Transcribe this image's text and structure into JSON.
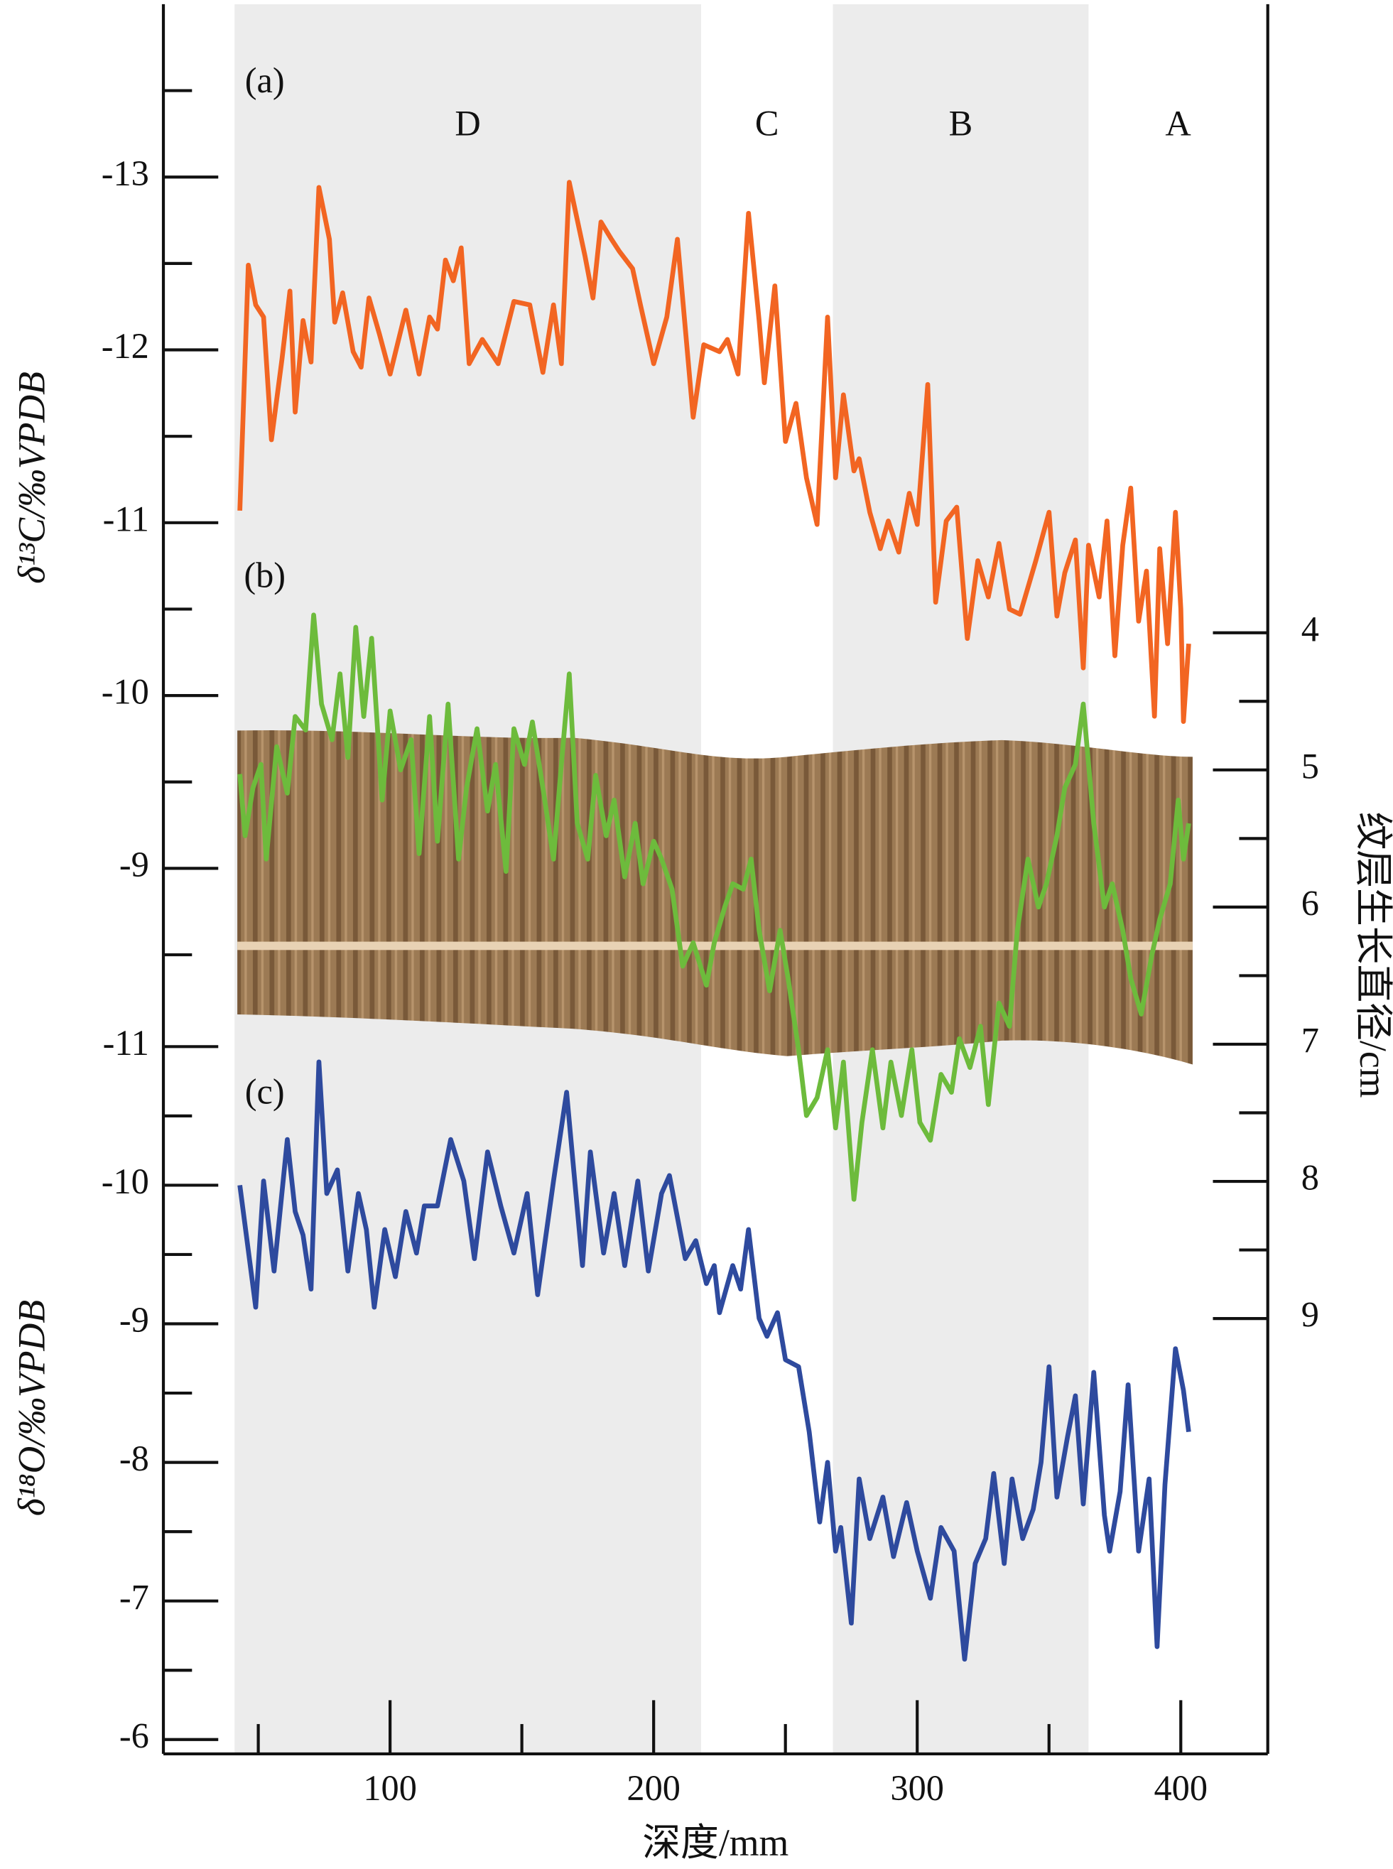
{
  "chart_data": {
    "type": "line",
    "x_label": "深度/mm",
    "xlim": [
      14,
      433
    ],
    "xticks": [
      100,
      200,
      300,
      400
    ],
    "xminor": [
      50,
      150,
      250,
      350
    ],
    "ylabel": "δ¹³C/‰VPDB",
    "ylim": [
      -14,
      -8.5
    ],
    "yticks": [
      -13,
      -12,
      -11,
      -10,
      -9
    ],
    "yminor": [
      -13.5,
      -12.5,
      -11.5,
      -10.5,
      -9.5,
      -8.5
    ],
    "y3label": "δ¹⁸O/‰VPDB",
    "y3lim": [
      -11,
      -6
    ],
    "y3ticks": [
      -11,
      -10,
      -9,
      -8,
      -7,
      -6
    ],
    "y3minor": [
      -10.5,
      -9.5,
      -8.5,
      -7.5,
      -6.5
    ],
    "y2label": "纹层生长直径/cm",
    "y2lim": [
      4,
      9
    ],
    "y2ticks": [
      4,
      5,
      6,
      7,
      8,
      9
    ],
    "y2minor": [
      4.5,
      5.5,
      6.5,
      7.5,
      8.5
    ],
    "zones": [
      {
        "label": "D",
        "range": [
          41,
          218
        ],
        "shaded": true
      },
      {
        "label": "C",
        "range": [
          218,
          268
        ],
        "shaded": false
      },
      {
        "label": "B",
        "range": [
          268,
          365
        ],
        "shaded": true
      },
      {
        "label": "A",
        "range": [
          365,
          433
        ],
        "shaded": false
      }
    ],
    "series": [
      {
        "label": "(a)",
        "axis": "y",
        "color": "#f26522",
        "x": [
          43,
          46.2,
          49,
          52,
          55,
          59,
          62,
          64,
          67,
          70,
          73,
          77,
          79,
          82,
          86,
          89,
          92,
          96,
          100,
          106,
          111,
          115,
          118,
          121,
          124,
          127,
          130,
          135,
          141,
          147,
          153,
          158,
          162,
          165,
          168,
          174,
          177,
          180,
          184,
          187,
          192,
          195,
          200,
          205,
          209,
          215,
          219,
          225,
          228,
          232,
          236,
          240,
          242,
          246,
          250,
          254,
          258,
          262,
          266,
          269,
          272,
          276,
          278,
          282,
          286,
          289,
          293,
          297,
          300,
          304,
          307,
          311,
          315,
          319,
          323,
          327,
          331,
          335,
          339,
          345,
          350,
          353,
          356,
          360,
          363,
          365,
          369,
          372,
          375,
          378,
          381,
          384,
          387,
          390,
          392,
          395,
          398,
          400,
          401,
          403
        ],
        "values": [
          -11.07,
          -12.49,
          -12.26,
          -12.19,
          -11.48,
          -11.95,
          -12.34,
          -11.64,
          -12.17,
          -11.93,
          -12.94,
          -12.64,
          -12.16,
          -12.33,
          -11.99,
          -11.9,
          -12.3,
          -12.09,
          -11.86,
          -12.23,
          -11.86,
          -12.19,
          -12.12,
          -12.52,
          -12.4,
          -12.59,
          -11.92,
          -12.06,
          -11.92,
          -12.28,
          -12.26,
          -11.87,
          -12.26,
          -11.92,
          -12.97,
          -12.54,
          -12.3,
          -12.74,
          -12.64,
          -12.57,
          -12.47,
          -12.26,
          -11.92,
          -12.19,
          -12.64,
          -11.61,
          -12.03,
          -11.99,
          -12.06,
          -11.86,
          -12.79,
          -12.17,
          -11.81,
          -12.37,
          -11.47,
          -11.69,
          -11.26,
          -10.99,
          -12.19,
          -11.26,
          -11.74,
          -11.3,
          -11.37,
          -11.06,
          -10.85,
          -11.01,
          -10.83,
          -11.17,
          -10.99,
          -11.8,
          -10.54,
          -11.01,
          -11.09,
          -10.33,
          -10.78,
          -10.57,
          -10.88,
          -10.5,
          -10.47,
          -10.78,
          -11.06,
          -10.46,
          -10.71,
          -10.9,
          -10.16,
          -10.87,
          -10.57,
          -11.01,
          -10.23,
          -10.87,
          -11.2,
          -10.43,
          -10.72,
          -9.88,
          -10.85,
          -10.3,
          -11.06,
          -10.5,
          -9.85,
          -10.3
        ]
      },
      {
        "label": "(b)",
        "axis": "y2",
        "color": "#6dbb3c",
        "x": [
          43,
          45,
          48,
          51,
          53,
          57,
          61,
          64,
          68,
          71,
          74,
          78,
          81,
          84,
          87,
          90,
          93,
          97,
          100,
          104,
          108,
          111,
          115,
          118,
          122,
          126,
          129,
          133,
          137,
          140,
          144,
          147,
          151,
          154,
          158,
          162,
          165,
          168,
          171,
          175,
          178,
          182,
          185,
          189,
          193,
          196,
          200,
          203,
          207,
          211,
          215,
          220,
          223,
          227,
          230,
          234,
          237,
          240,
          244,
          248,
          251,
          255,
          258,
          262,
          266,
          269,
          272,
          276,
          279,
          283,
          287,
          290,
          294,
          298,
          301,
          305,
          309,
          313,
          316,
          320,
          324,
          327,
          331,
          335,
          338,
          342,
          346,
          349,
          353,
          356,
          360,
          363,
          367,
          371,
          374,
          378,
          381,
          385,
          389,
          392,
          396,
          399,
          401,
          403
        ],
        "values": [
          5.03,
          5.48,
          5.13,
          4.96,
          5.65,
          4.83,
          5.17,
          4.61,
          4.71,
          3.87,
          4.52,
          4.78,
          4.3,
          4.91,
          3.96,
          4.61,
          4.04,
          5.22,
          4.57,
          5.0,
          4.78,
          5.61,
          4.61,
          5.52,
          4.52,
          5.65,
          5.13,
          4.7,
          5.3,
          4.96,
          5.74,
          4.7,
          4.96,
          4.65,
          5.13,
          5.65,
          4.96,
          4.3,
          5.39,
          5.65,
          5.04,
          5.48,
          5.22,
          5.78,
          5.39,
          5.83,
          5.52,
          5.65,
          5.87,
          6.43,
          6.26,
          6.57,
          6.26,
          6.0,
          5.83,
          5.87,
          5.65,
          6.17,
          6.61,
          6.17,
          6.52,
          7.04,
          7.52,
          7.39,
          7.04,
          7.61,
          7.13,
          8.13,
          7.57,
          7.04,
          7.61,
          7.13,
          7.52,
          7.04,
          7.57,
          7.7,
          7.22,
          7.35,
          6.96,
          7.17,
          6.87,
          7.44,
          6.7,
          6.87,
          6.17,
          5.65,
          6.0,
          5.83,
          5.48,
          5.13,
          4.96,
          4.52,
          5.39,
          6.0,
          5.83,
          6.17,
          6.52,
          6.78,
          6.35,
          6.09,
          5.83,
          5.22,
          5.65,
          5.39
        ]
      },
      {
        "label": "(c)",
        "axis": "y3",
        "color": "#2e4a9e",
        "x": [
          43,
          49,
          52,
          56,
          61,
          64,
          67,
          70,
          73,
          76,
          80,
          84,
          88,
          91,
          94,
          98,
          102,
          106,
          110,
          113,
          118,
          123,
          128,
          132,
          137,
          142,
          147,
          152,
          156,
          162,
          167,
          173,
          176,
          181,
          185,
          189,
          194,
          198,
          203,
          206,
          212,
          216,
          220,
          223,
          225,
          230,
          233,
          236,
          240,
          243,
          247,
          250,
          255,
          259,
          263,
          266,
          269,
          271,
          275,
          278,
          282,
          287,
          291,
          296,
          300,
          305,
          309,
          314,
          318,
          322,
          326,
          329,
          333,
          336,
          340,
          344,
          347,
          350,
          353,
          357,
          360,
          363,
          367,
          371,
          373,
          377,
          380,
          384,
          388,
          391,
          394,
          398,
          401,
          403
        ],
        "values": [
          -10.0,
          -9.12,
          -10.03,
          -9.38,
          -10.33,
          -9.81,
          -9.64,
          -9.25,
          -10.89,
          -9.94,
          -10.11,
          -9.38,
          -9.94,
          -9.68,
          -9.12,
          -9.68,
          -9.34,
          -9.81,
          -9.51,
          -9.85,
          -9.85,
          -10.33,
          -10.03,
          -9.47,
          -10.24,
          -9.85,
          -9.51,
          -9.94,
          -9.21,
          -10.03,
          -10.67,
          -9.42,
          -10.24,
          -9.51,
          -9.94,
          -9.42,
          -10.03,
          -9.38,
          -9.94,
          -10.07,
          -9.47,
          -9.6,
          -9.29,
          -9.42,
          -9.08,
          -9.42,
          -9.25,
          -9.68,
          -9.04,
          -8.91,
          -9.08,
          -8.74,
          -8.69,
          -8.22,
          -7.57,
          -8.0,
          -7.36,
          -7.53,
          -6.84,
          -7.88,
          -7.45,
          -7.75,
          -7.32,
          -7.71,
          -7.36,
          -7.02,
          -7.53,
          -7.36,
          -6.58,
          -7.27,
          -7.45,
          -7.92,
          -7.27,
          -7.88,
          -7.45,
          -7.66,
          -8.0,
          -8.69,
          -7.75,
          -8.18,
          -8.48,
          -7.7,
          -8.65,
          -7.62,
          -7.36,
          -7.79,
          -8.56,
          -7.36,
          -7.88,
          -6.67,
          -7.84,
          -8.82,
          -8.52,
          -8.22
        ]
      }
    ]
  }
}
